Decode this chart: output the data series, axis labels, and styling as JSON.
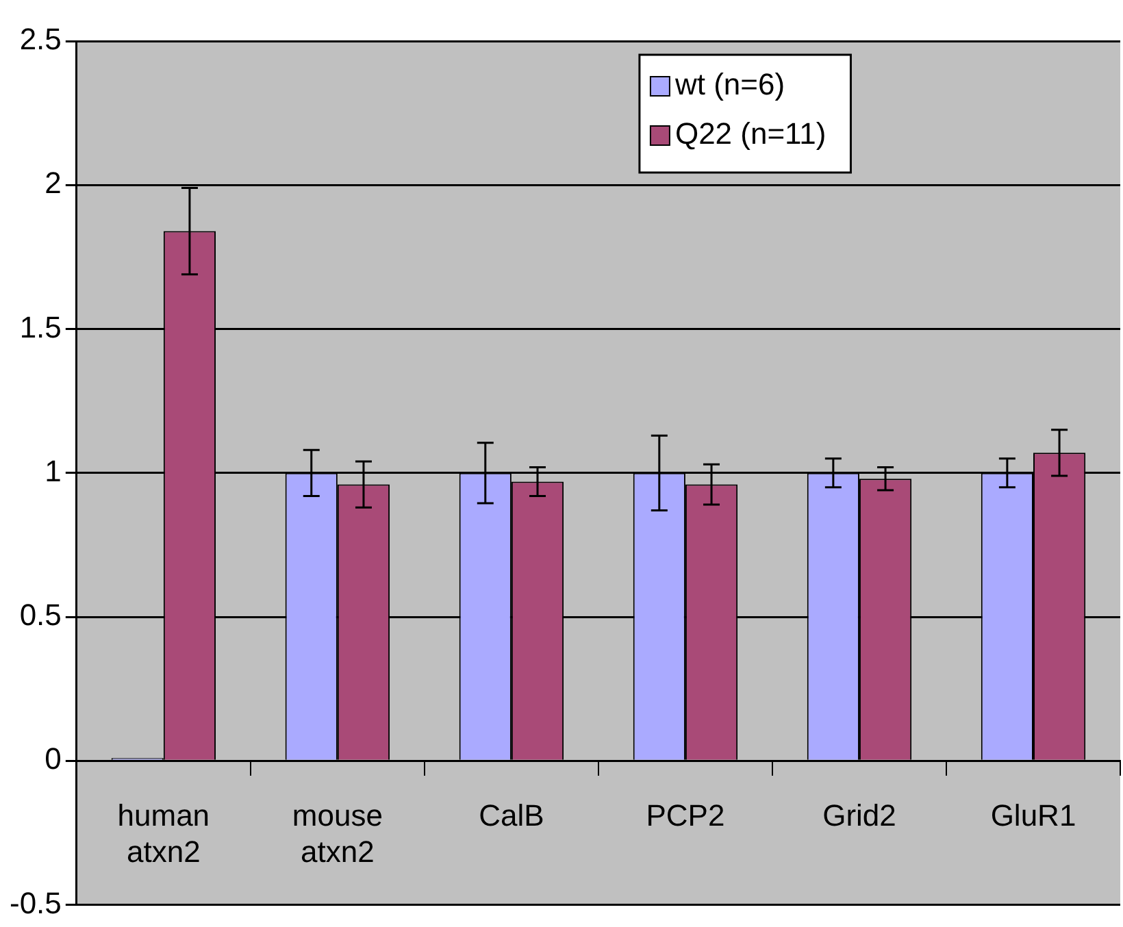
{
  "chart_data": {
    "type": "bar",
    "categories": [
      "human atxn2",
      "mouse atxn2",
      "CalB",
      "PCP2",
      "Grid2",
      "GluR1"
    ],
    "series": [
      {
        "name": "wt (n=6)",
        "color": "#aaaaff",
        "values": [
          0.01,
          1.0,
          1.0,
          1.0,
          1.0,
          1.0
        ],
        "errors": [
          null,
          0.08,
          0.105,
          0.13,
          0.05,
          0.05
        ]
      },
      {
        "name": "Q22 (n=11)",
        "color": "#a94a77",
        "values": [
          1.84,
          0.96,
          0.97,
          0.96,
          0.98,
          1.07
        ],
        "errors": [
          0.15,
          0.08,
          0.05,
          0.07,
          0.04,
          0.08
        ]
      }
    ],
    "ylim": [
      -0.5,
      2.5
    ],
    "yticks": [
      -0.5,
      0,
      0.5,
      1,
      1.5,
      2,
      2.5
    ],
    "grid": "y",
    "legend": "top"
  }
}
